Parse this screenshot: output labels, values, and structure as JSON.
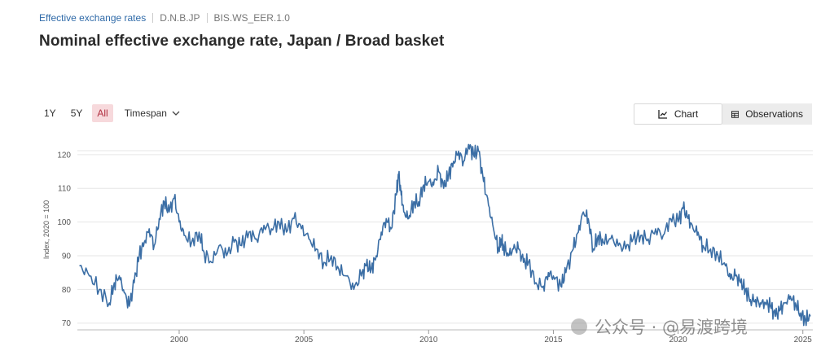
{
  "breadcrumb": {
    "link": "Effective exchange rates",
    "code1": "D.N.B.JP",
    "code2": "BIS.WS_EER.1.0"
  },
  "title": "Nominal effective exchange rate, Japan / Broad basket",
  "range_buttons": [
    "1Y",
    "5Y",
    "All"
  ],
  "timespan_label": "Timespan",
  "view_toggle": {
    "chart": "Chart",
    "observations": "Observations"
  },
  "watermark": "公众号 · @易渡跨境",
  "colors": {
    "line": "#3b6ea5",
    "active_range": "#f7d9dc",
    "link": "#2f6aa8"
  },
  "chart_data": {
    "type": "line",
    "title": "",
    "xlabel": "",
    "ylabel": "Index, 2020 = 100",
    "xlim": [
      1995.92,
      2025.4
    ],
    "ylim": [
      68,
      126
    ],
    "xticks": [
      2000,
      2005,
      2010,
      2015,
      2020,
      2025
    ],
    "yticks": [
      70,
      80,
      90,
      100,
      110,
      120
    ],
    "grid": "horizontal",
    "legend": "none",
    "series": [
      {
        "x": [
          1996.0,
          1996.4,
          1996.8,
          1997.2,
          1997.4,
          1997.6,
          1997.8,
          1998.0,
          1998.2,
          1998.4,
          1998.6,
          1998.8,
          1999.0,
          1999.2,
          1999.4,
          1999.6,
          1999.8,
          2000.0,
          2000.2,
          2000.5,
          2000.8,
          2001.0,
          2001.3,
          2001.6,
          2001.9,
          2002.2,
          2002.5,
          2002.8,
          2003.1,
          2003.4,
          2003.7,
          2004.0,
          2004.3,
          2004.6,
          2004.9,
          2005.2,
          2005.5,
          2005.8,
          2006.1,
          2006.4,
          2006.7,
          2007.0,
          2007.3,
          2007.5,
          2007.7,
          2007.9,
          2008.1,
          2008.3,
          2008.5,
          2008.7,
          2008.8,
          2008.9,
          2009.0,
          2009.2,
          2009.4,
          2009.6,
          2009.8,
          2010.0,
          2010.2,
          2010.4,
          2010.6,
          2010.8,
          2011.0,
          2011.2,
          2011.4,
          2011.6,
          2011.8,
          2012.0,
          2012.2,
          2012.4,
          2012.6,
          2012.8,
          2012.9,
          2013.0,
          2013.2,
          2013.4,
          2013.6,
          2013.8,
          2014.0,
          2014.3,
          2014.6,
          2014.8,
          2015.0,
          2015.3,
          2015.5,
          2015.8,
          2016.0,
          2016.2,
          2016.4,
          2016.6,
          2016.8,
          2017.0,
          2017.3,
          2017.6,
          2017.9,
          2018.2,
          2018.5,
          2018.8,
          2019.1,
          2019.4,
          2019.7,
          2020.0,
          2020.2,
          2020.4,
          2020.6,
          2020.8,
          2021.0,
          2021.3,
          2021.6,
          2021.9,
          2022.1,
          2022.3,
          2022.5,
          2022.7,
          2022.9,
          2023.1,
          2023.3,
          2023.5,
          2023.7,
          2023.9,
          2024.1,
          2024.3,
          2024.5,
          2024.7,
          2024.9,
          2025.1,
          2025.3
        ],
        "values": [
          87,
          84,
          80,
          76,
          82,
          84,
          79,
          75,
          82,
          90,
          94,
          98,
          93,
          101,
          106,
          103,
          107,
          100,
          96,
          94,
          97,
          91,
          88,
          93,
          90,
          94,
          93,
          97,
          95,
          99,
          98,
          100,
          97,
          101,
          98,
          95,
          92,
          88,
          90,
          86,
          84,
          80,
          84,
          87,
          86,
          90,
          97,
          101,
          98,
          108,
          114,
          108,
          103,
          101,
          106,
          106,
          111,
          112,
          111,
          115,
          110,
          114,
          118,
          121,
          118,
          123,
          120,
          121,
          112,
          105,
          98,
          92,
          95,
          93,
          90,
          92,
          92,
          88,
          88,
          82,
          81,
          85,
          84,
          81,
          85,
          92,
          97,
          103,
          101,
          92,
          96,
          94,
          95,
          93,
          92,
          95,
          96,
          95,
          98,
          96,
          101,
          100,
          104,
          101,
          98,
          97,
          93,
          92,
          90,
          87,
          83,
          84,
          82,
          80,
          77,
          77,
          76,
          76,
          75,
          72,
          74,
          76,
          78,
          76,
          73,
          71,
          72
        ]
      }
    ]
  }
}
